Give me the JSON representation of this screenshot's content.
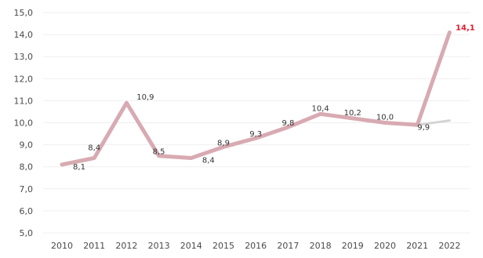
{
  "chart_data": {
    "type": "line",
    "title": "",
    "xlabel": "",
    "ylabel": "",
    "categories": [
      "2010",
      "2011",
      "2012",
      "2013",
      "2014",
      "2015",
      "2016",
      "2017",
      "2018",
      "2019",
      "2020",
      "2021",
      "2022"
    ],
    "ylim": [
      5.0,
      15.0
    ],
    "ytick_labels": [
      "5,0",
      "6,0",
      "7,0",
      "8,0",
      "9,0",
      "10,0",
      "11,0",
      "12,0",
      "13,0",
      "14,0",
      "15,0"
    ],
    "grid": true,
    "series": [
      {
        "values": [
          8.1,
          8.4,
          10.9,
          8.5,
          8.4,
          8.9,
          9.3,
          9.8,
          10.4,
          10.2,
          10.0,
          9.9,
          14.1
        ],
        "labels": [
          "8,1",
          "8,4",
          "10,9",
          "8,5",
          "8,4",
          "8,9",
          "9,3",
          "9,8",
          "10,4",
          "10,2",
          "10,0",
          "9,9",
          "14,1"
        ],
        "color": "#d8aab2",
        "highlight_color": "#e0192b"
      },
      {
        "values": [
          null,
          null,
          null,
          null,
          null,
          null,
          null,
          null,
          null,
          null,
          null,
          9.9,
          10.1
        ],
        "color": "#d4d4d4"
      }
    ]
  }
}
